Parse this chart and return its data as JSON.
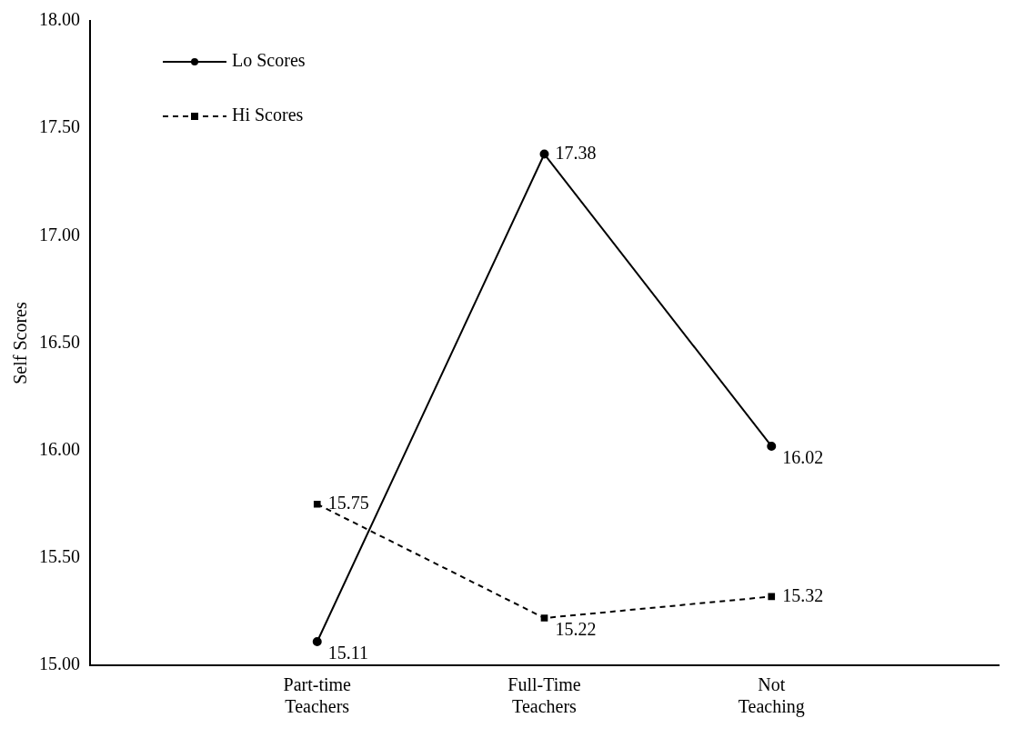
{
  "chart_data": {
    "type": "line",
    "ylabel": "Self Scores",
    "categories": [
      "Part-time Teachers",
      "Full-Time Teachers",
      "Not Teaching"
    ],
    "series": [
      {
        "name": "Lo Scores",
        "color": "#000000",
        "values": [
          15.11,
          17.38,
          16.02
        ],
        "marker": "circle",
        "line_style": "solid"
      },
      {
        "name": "Hi Scores",
        "color": "#000000",
        "values": [
          15.75,
          15.22,
          15.32
        ],
        "marker": "square",
        "line_style": "dashed"
      }
    ],
    "ylim": [
      15,
      18
    ],
    "yticks": [
      {
        "value": 15,
        "label": "15.00"
      },
      {
        "value": 15.5,
        "label": "15.50"
      },
      {
        "value": 16,
        "label": "16.00"
      },
      {
        "value": 16.5,
        "label": "16.50"
      },
      {
        "value": 17,
        "label": "17.00"
      },
      {
        "value": 17.5,
        "label": "17.50"
      },
      {
        "value": 18,
        "label": "18.00"
      }
    ],
    "grid": false,
    "legend": "top left",
    "data_labels": true
  }
}
